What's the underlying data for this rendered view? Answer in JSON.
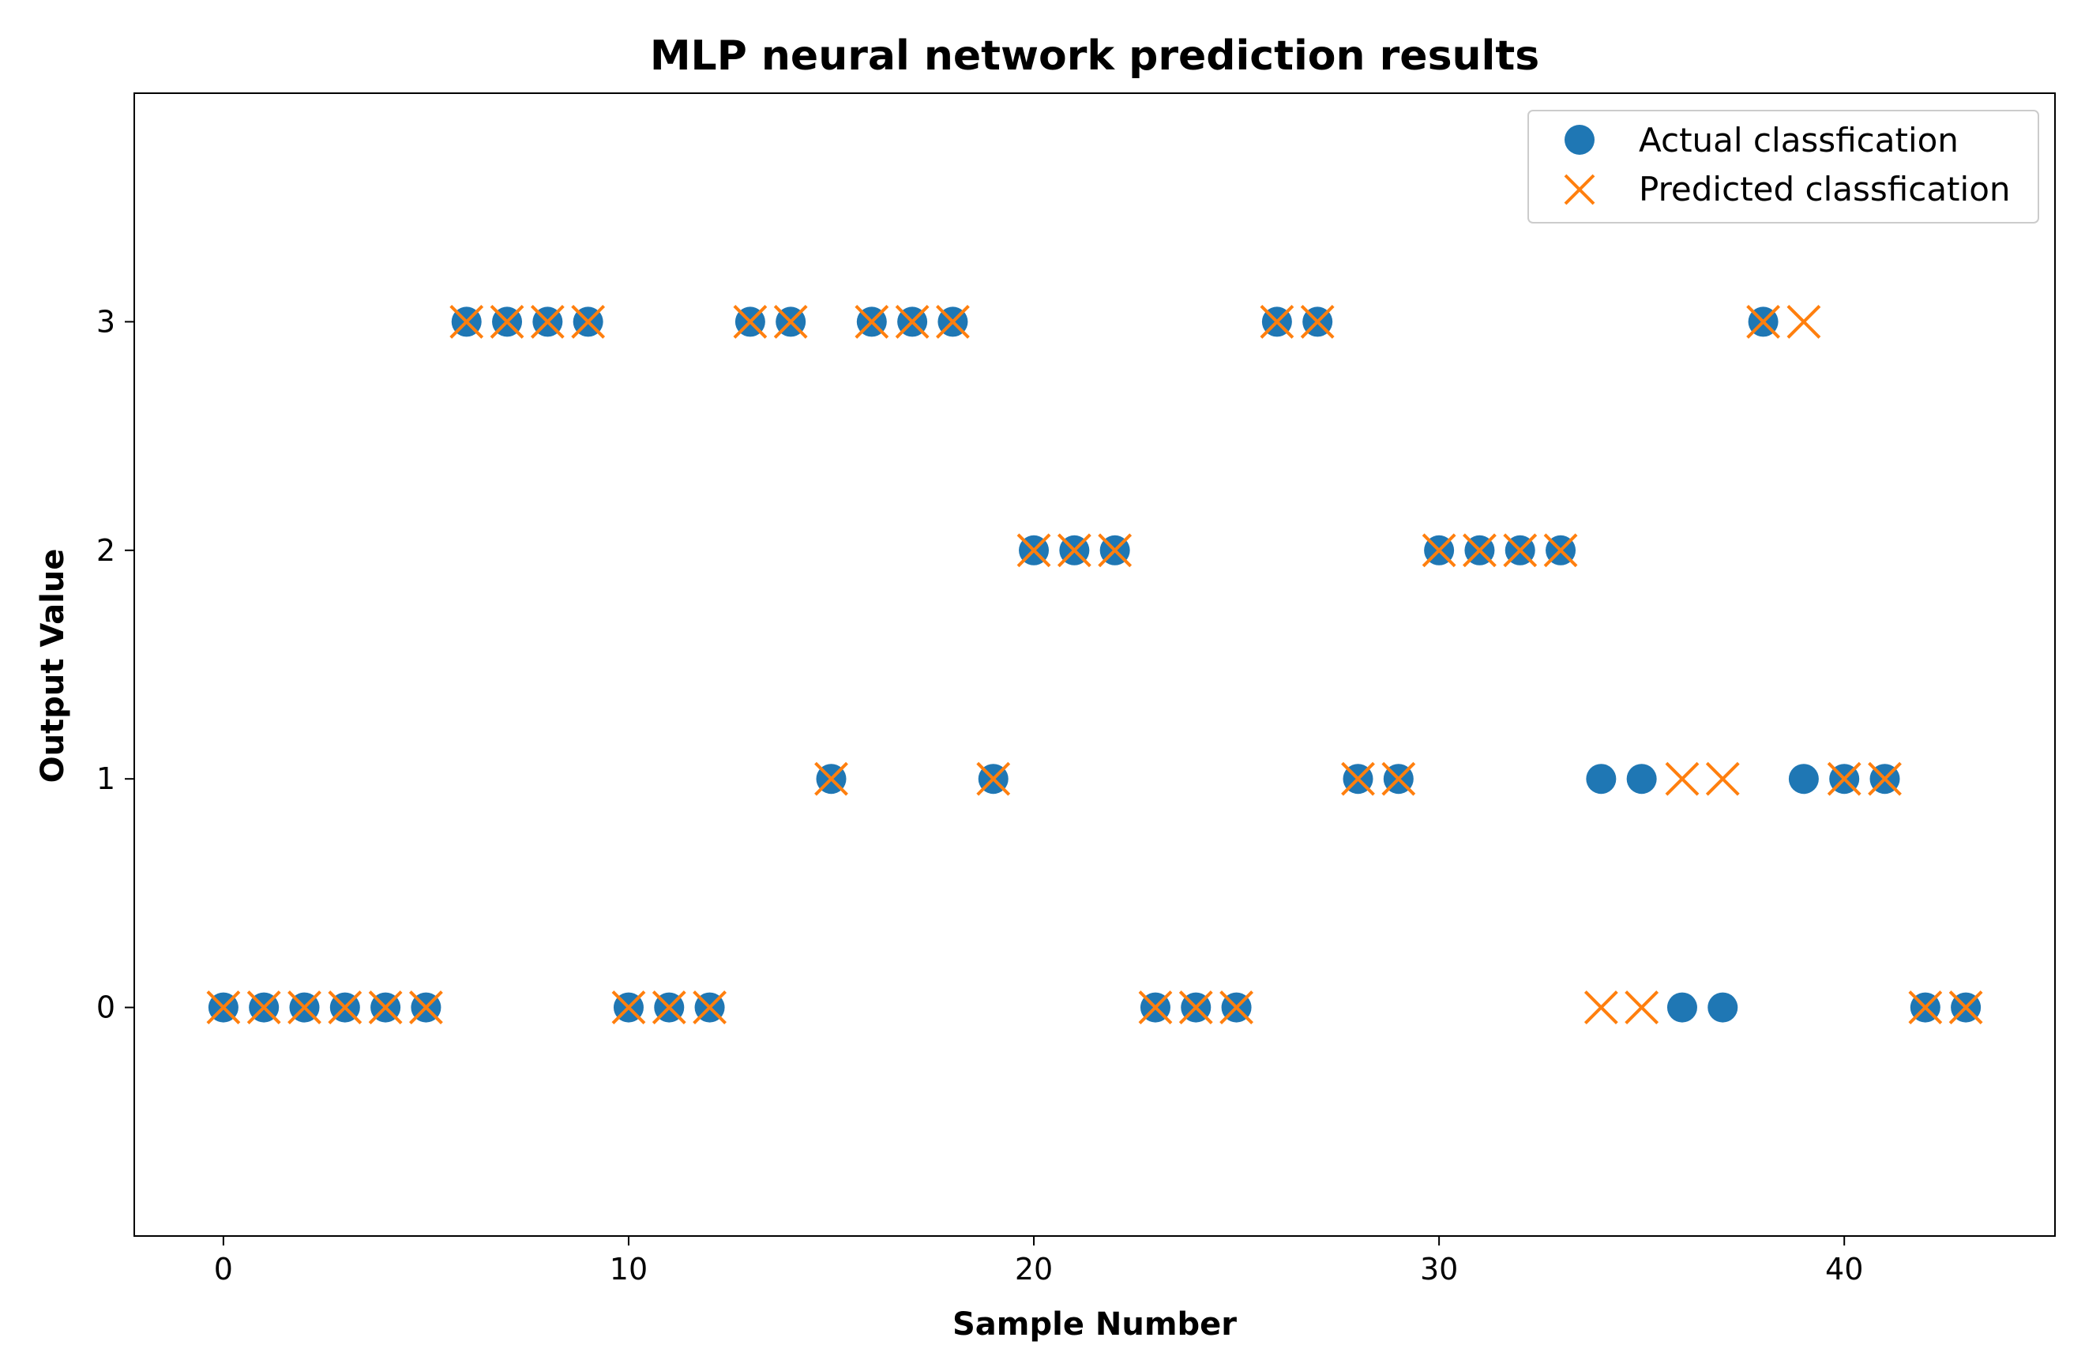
{
  "chart_data": {
    "type": "scatter",
    "title": "MLP neural network prediction results",
    "xlabel": "Sample Number",
    "ylabel": "Output Value",
    "xlim": [
      -2.2,
      45.2
    ],
    "ylim": [
      -1,
      4
    ],
    "x_ticks": [
      0,
      10,
      20,
      30,
      40
    ],
    "y_ticks": [
      0,
      1,
      2,
      3
    ],
    "grid": false,
    "legend_position": "top-right",
    "x": [
      0,
      1,
      2,
      3,
      4,
      5,
      6,
      7,
      8,
      9,
      10,
      11,
      12,
      13,
      14,
      15,
      16,
      17,
      18,
      19,
      20,
      21,
      22,
      23,
      24,
      25,
      26,
      27,
      28,
      29,
      30,
      31,
      32,
      33,
      34,
      35,
      36,
      37,
      38,
      39,
      40,
      41,
      42,
      43
    ],
    "series": [
      {
        "name": "Actual classfication",
        "marker": "circle",
        "color": "#1f77b4",
        "values": [
          0,
          0,
          0,
          0,
          0,
          0,
          3,
          3,
          3,
          3,
          0,
          0,
          0,
          3,
          3,
          1,
          3,
          3,
          3,
          1,
          2,
          2,
          2,
          0,
          0,
          0,
          3,
          3,
          1,
          1,
          2,
          2,
          2,
          2,
          1,
          1,
          0,
          0,
          3,
          1,
          1,
          1,
          0,
          0
        ]
      },
      {
        "name": "Predicted classfication",
        "marker": "x",
        "color": "#ff7f0e",
        "values": [
          0,
          0,
          0,
          0,
          0,
          0,
          3,
          3,
          3,
          3,
          0,
          0,
          0,
          3,
          3,
          1,
          3,
          3,
          3,
          1,
          2,
          2,
          2,
          0,
          0,
          0,
          3,
          3,
          1,
          1,
          2,
          2,
          2,
          2,
          0,
          0,
          1,
          1,
          3,
          3,
          1,
          1,
          0,
          0
        ]
      }
    ]
  }
}
